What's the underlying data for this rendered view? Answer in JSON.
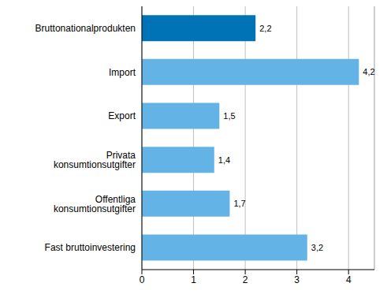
{
  "chart_data": {
    "type": "bar",
    "orientation": "horizontal",
    "categories": [
      "Bruttonationalprodukten",
      "Import",
      "Export",
      "Privata konsumtionsutgifter",
      "Offentliga konsumtionsutgifter",
      "Fast bruttoinvestering"
    ],
    "values": [
      2.2,
      4.2,
      1.5,
      1.4,
      1.7,
      3.2
    ],
    "value_labels": [
      "2,2",
      "4,2",
      "1,5",
      "1,4",
      "1,7",
      "3,2"
    ],
    "colors": [
      "#0073b7",
      "#63b3e6",
      "#63b3e6",
      "#63b3e6",
      "#63b3e6",
      "#63b3e6"
    ],
    "xlim": [
      0,
      4.5
    ],
    "xticks": [
      0,
      1,
      2,
      3,
      4
    ],
    "grid": true,
    "data_labels": true
  }
}
